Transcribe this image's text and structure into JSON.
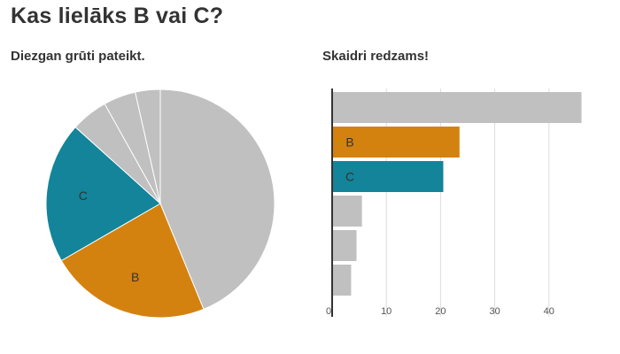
{
  "title": "Kas lielāks B vai C?",
  "colors": {
    "other": "#c0c0c0",
    "B": "#d4820f",
    "C": "#138499",
    "text": "#333333",
    "grid": "#dddddd",
    "axis": "#333333"
  },
  "chart_data": [
    {
      "type": "pie",
      "subtitle": "Diezgan grūti pateikt.",
      "slices": [
        {
          "label": "",
          "value": 46,
          "color": "#c0c0c0"
        },
        {
          "label": "B",
          "value": 24,
          "color": "#d4820f"
        },
        {
          "label": "C",
          "value": 21,
          "color": "#138499"
        },
        {
          "label": "",
          "value": 5.5,
          "color": "#c0c0c0"
        },
        {
          "label": "",
          "value": 4.8,
          "color": "#c0c0c0"
        },
        {
          "label": "",
          "value": 3.7,
          "color": "#c0c0c0"
        }
      ]
    },
    {
      "type": "bar",
      "orientation": "horizontal",
      "subtitle": "Skaidri redzams!",
      "bars": [
        {
          "label": "",
          "value": 46,
          "color": "#c0c0c0"
        },
        {
          "label": "B",
          "value": 23.5,
          "color": "#d4820f"
        },
        {
          "label": "C",
          "value": 20.5,
          "color": "#138499"
        },
        {
          "label": "",
          "value": 5.5,
          "color": "#c0c0c0"
        },
        {
          "label": "",
          "value": 4.5,
          "color": "#c0c0c0"
        },
        {
          "label": "",
          "value": 3.5,
          "color": "#c0c0c0"
        }
      ],
      "x_ticks": [
        0,
        10,
        20,
        30,
        40
      ],
      "xlim": [
        0,
        46
      ],
      "grid": true
    }
  ]
}
